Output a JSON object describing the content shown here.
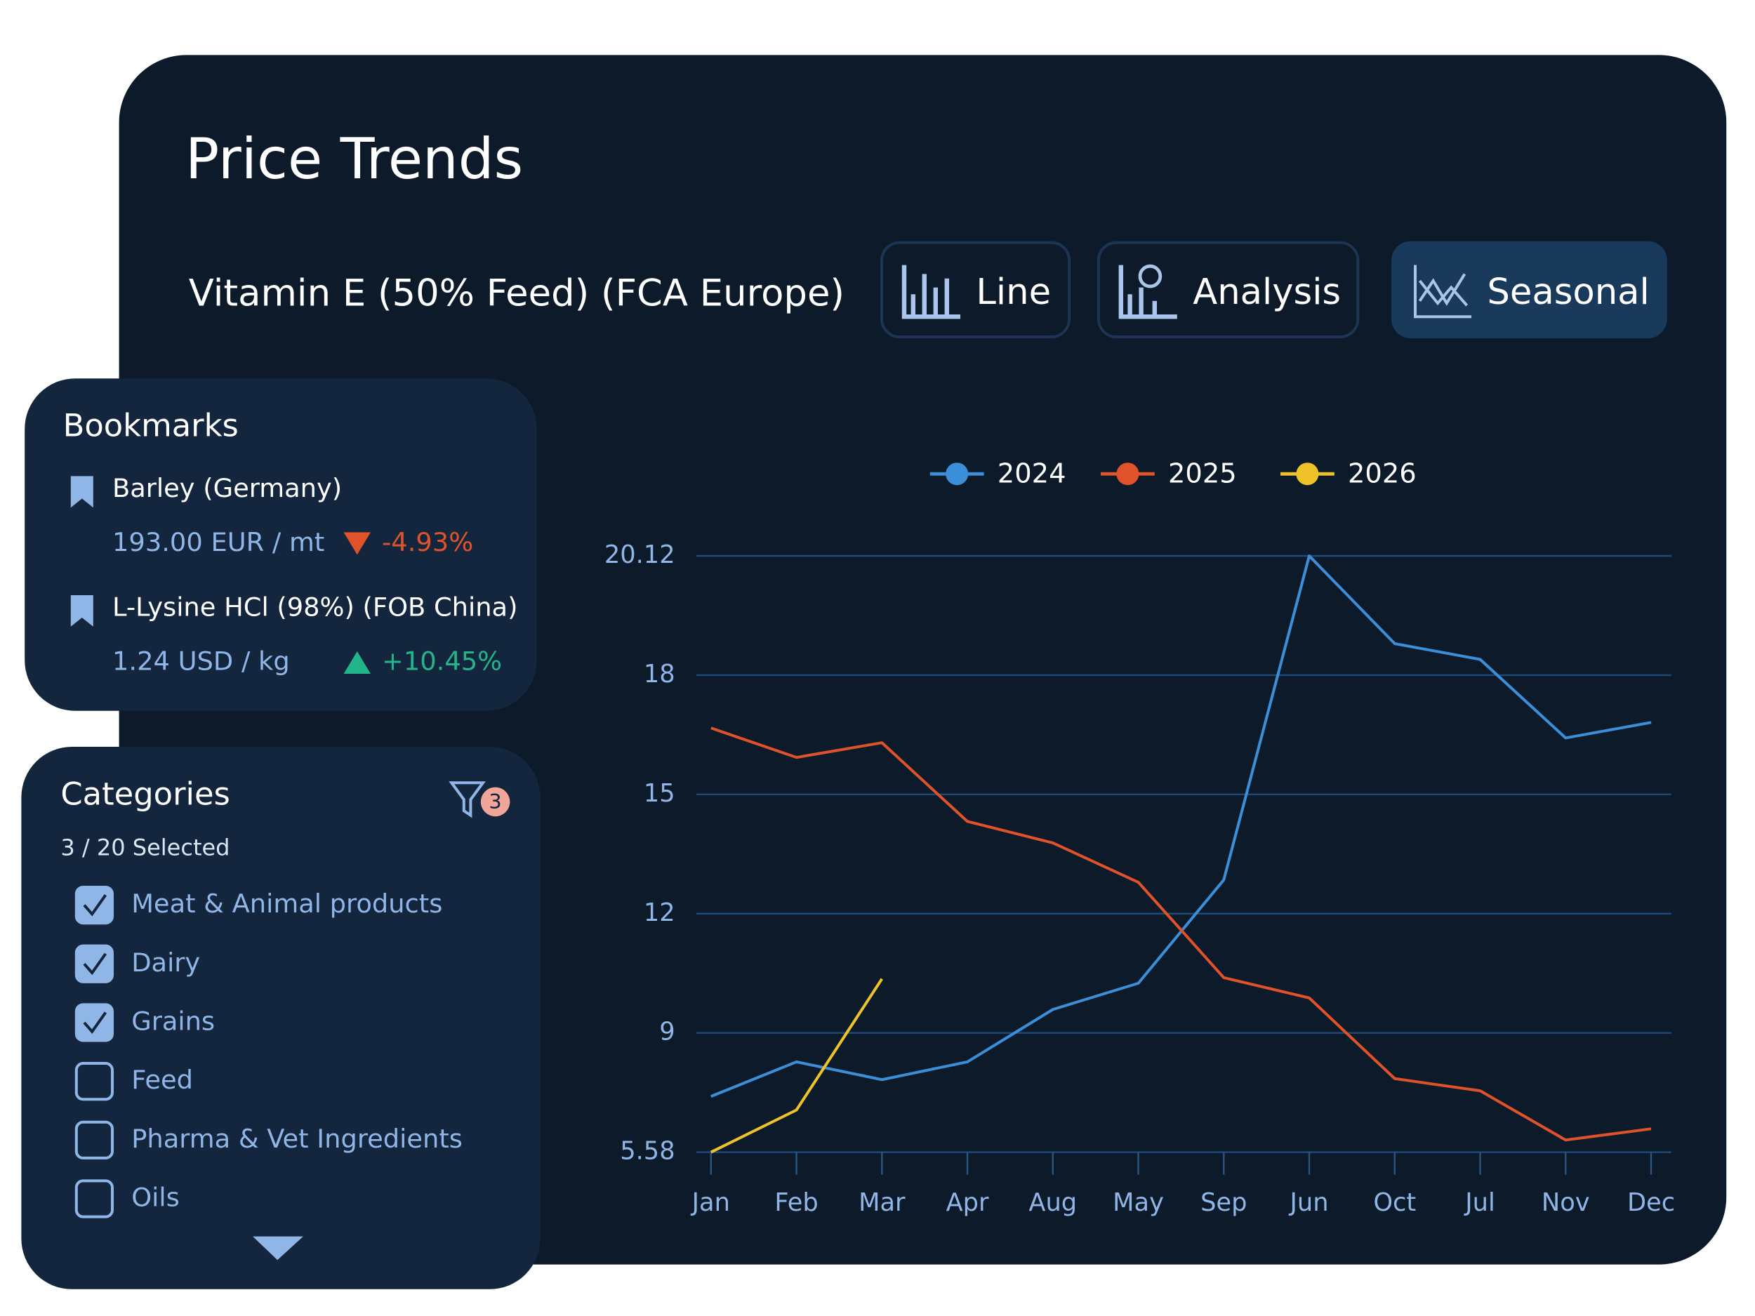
{
  "header": {
    "title": "Price Trends",
    "product": "Vitamin E (50% Feed) (FCA Europe)"
  },
  "views": [
    {
      "label": "Line",
      "active": false
    },
    {
      "label": "Analysis",
      "active": false
    },
    {
      "label": "Seasonal",
      "active": true
    }
  ],
  "bookmarks": {
    "title": "Bookmarks",
    "items": [
      {
        "name": "Barley (Germany)",
        "price": "193.00 EUR / mt",
        "change": "-4.93%",
        "color": "#e0522a"
      },
      {
        "name": "L-Lysine HCl (98%) (FOB China)",
        "price": "1.24 USD / kg",
        "change": "+10.45%",
        "color": "#22b58a"
      }
    ]
  },
  "categories_panel": {
    "title": "Categories",
    "filter_count": "3",
    "selected": "3 / 20 Selected",
    "items": [
      {
        "label": "Meat & Animal products",
        "checked": true
      },
      {
        "label": "Dairy",
        "checked": true
      },
      {
        "label": "Grains",
        "checked": true
      },
      {
        "label": "Feed",
        "checked": false
      },
      {
        "label": "Pharma & Vet Ingredients",
        "checked": false
      },
      {
        "label": "Oils",
        "checked": false
      }
    ]
  },
  "chart_data": {
    "type": "line",
    "categories": [
      "Jan",
      "Feb",
      "Mar",
      "Apr",
      "Aug",
      "May",
      "Sep",
      "Jun",
      "Oct",
      "Jul",
      "Nov",
      "Dec"
    ],
    "ylim": [
      5.58,
      20.12
    ],
    "yticks": [
      5.58,
      9,
      12,
      15,
      18,
      20.12
    ],
    "grid": true,
    "legend": "top",
    "series": [
      {
        "name": "2024",
        "color": "#3b8fd9",
        "values": [
          7.18,
          8.17,
          7.66,
          8.17,
          9.59,
          10.25,
          12.85,
          20.12,
          18.56,
          18.28,
          16.42,
          16.81
        ]
      },
      {
        "name": "2025",
        "color": "#e0522a",
        "values": [
          16.67,
          15.93,
          16.3,
          14.32,
          13.78,
          12.79,
          10.39,
          9.88,
          7.69,
          7.34,
          5.93,
          6.25
        ]
      },
      {
        "name": "2026",
        "color": "#f0c22a",
        "values": [
          5.58,
          6.79,
          10.36,
          null,
          null,
          null,
          null,
          null,
          null,
          null,
          null,
          null
        ]
      }
    ]
  }
}
